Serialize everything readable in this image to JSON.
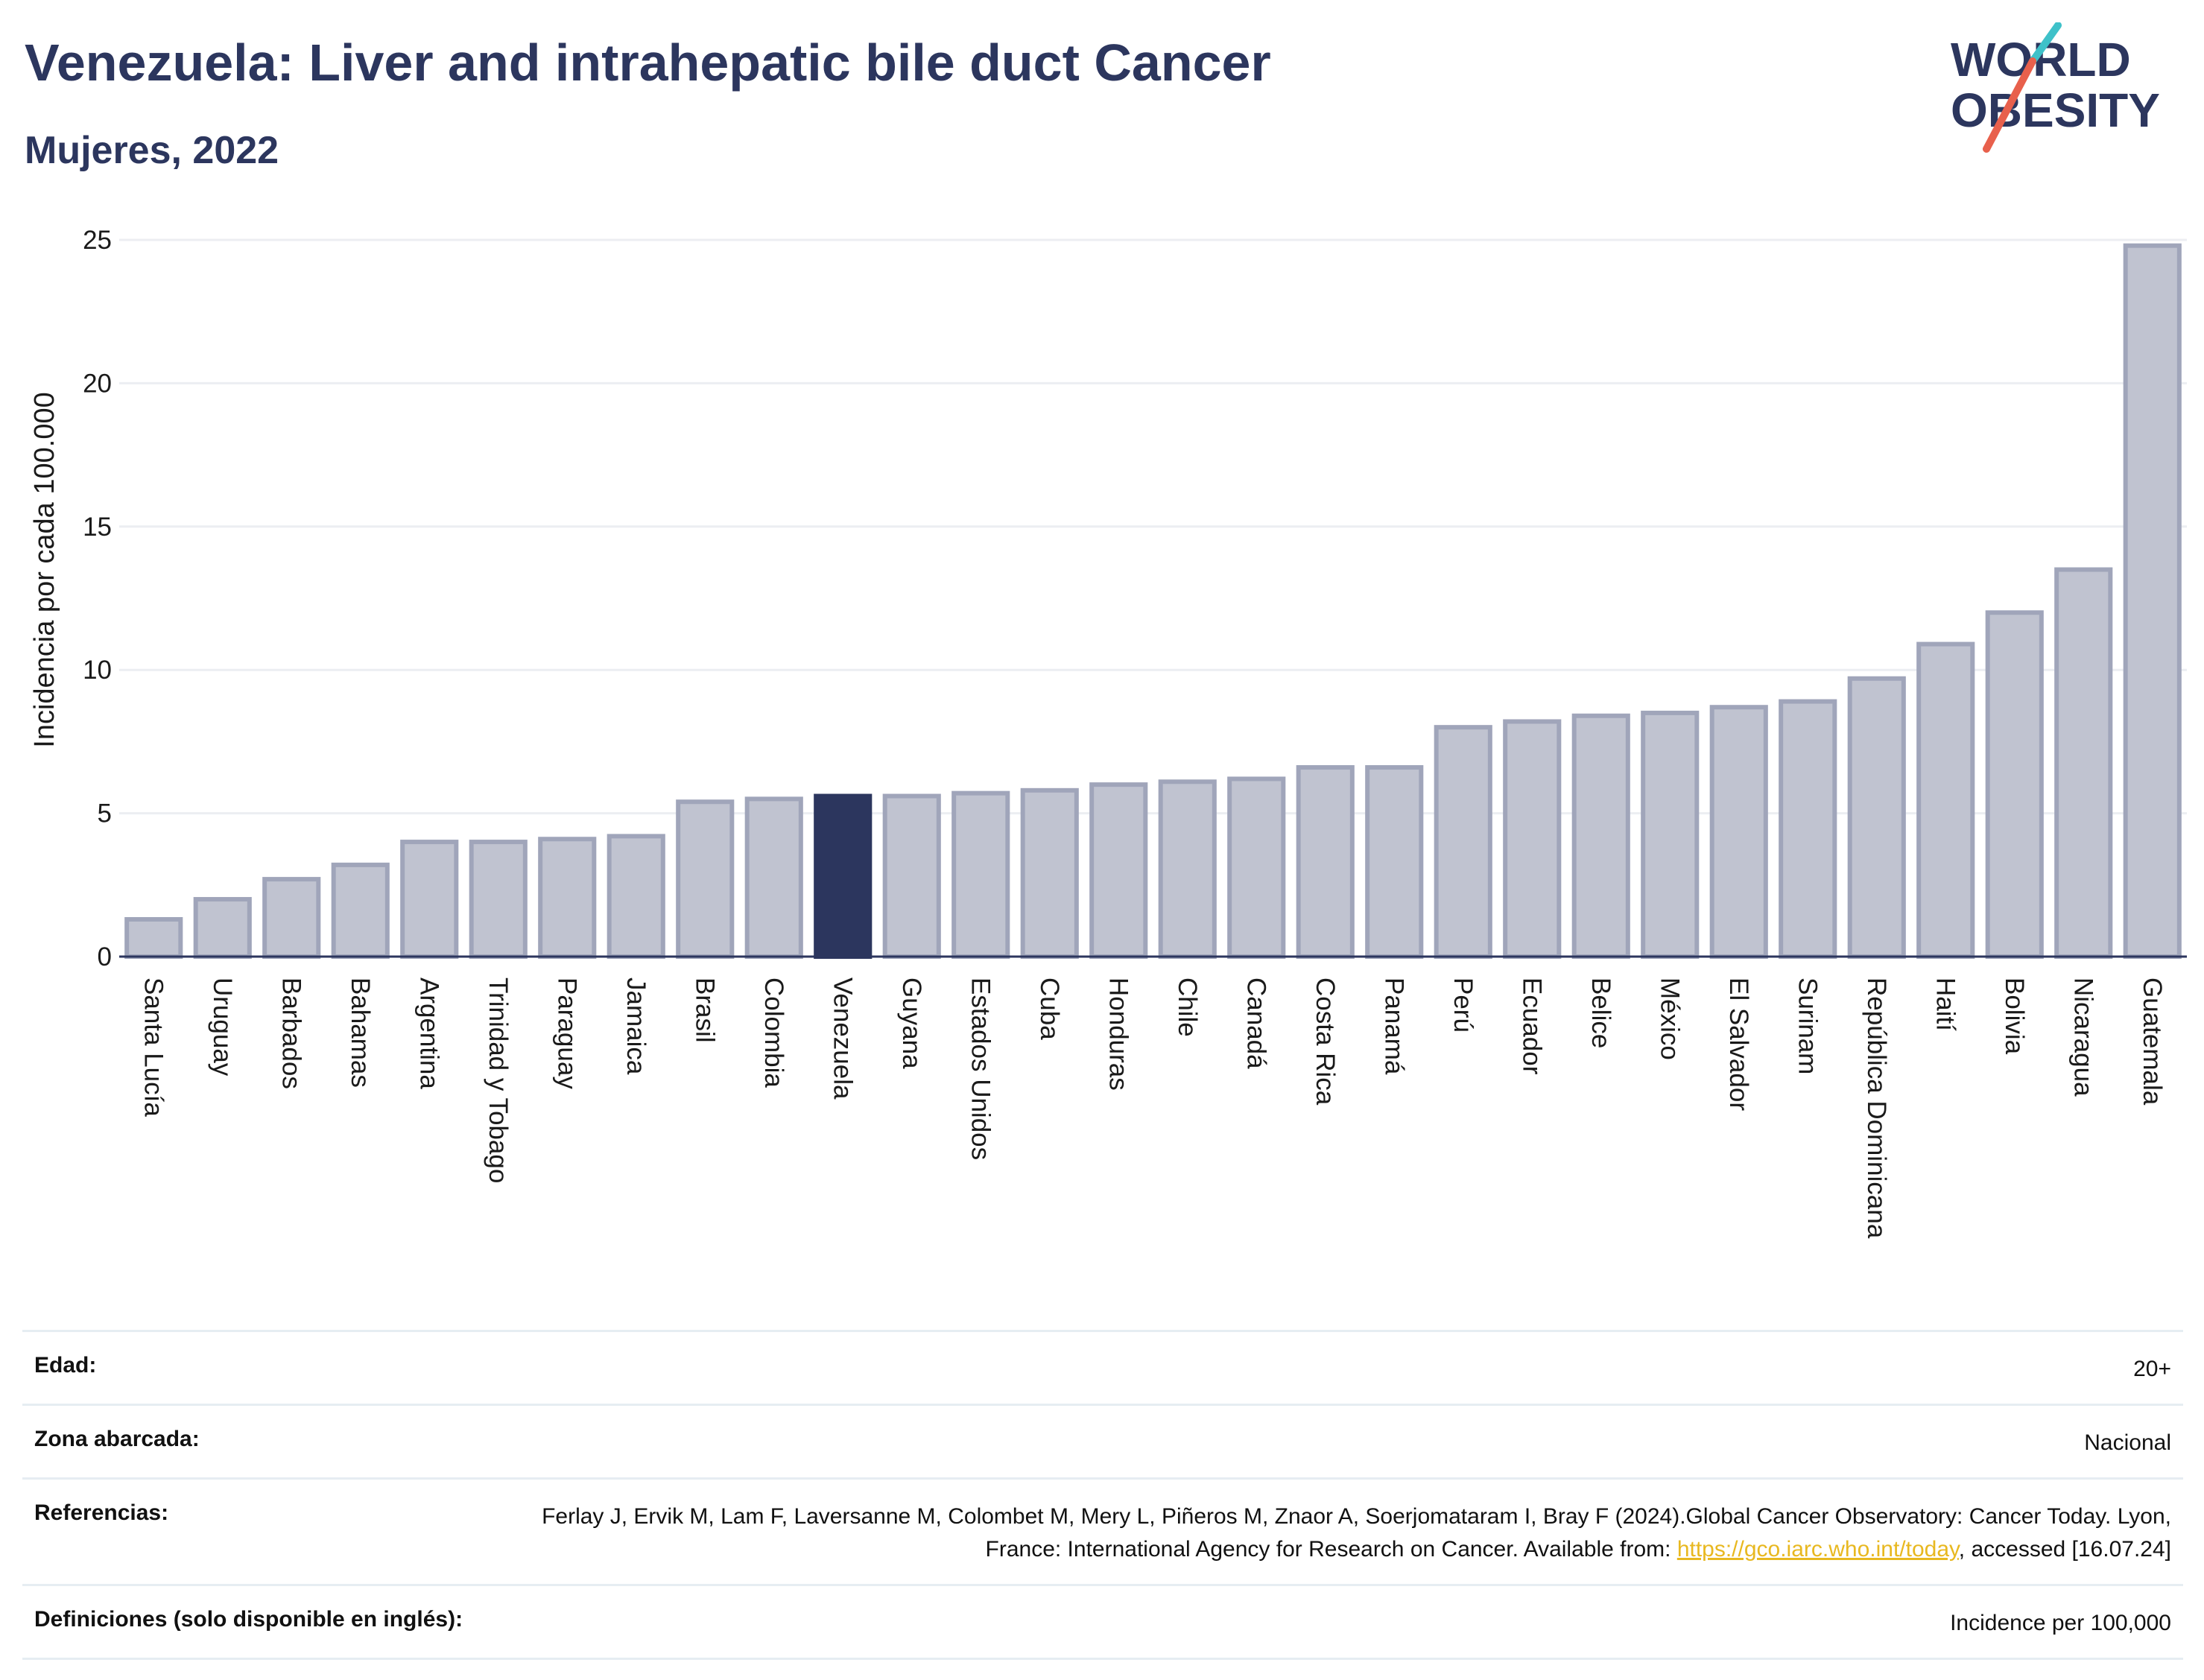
{
  "header": {
    "title": "Venezuela: Liver and intrahepatic bile duct Cancer",
    "subtitle": "Mujeres, 2022"
  },
  "logo": {
    "line1": "WORLD",
    "line2": "OBESITY"
  },
  "colors": {
    "highlight": "#2c365e",
    "bar_fill": "#c0c3d0",
    "bar_stroke": "#a0a5ba",
    "grid": "#eceef2",
    "link": "#e8b820",
    "logo_teal": "#3ec1c9",
    "logo_red": "#e8604c"
  },
  "chart_data": {
    "type": "bar",
    "ylabel": "Incidencia por cada 100.000",
    "ylim": [
      0,
      25
    ],
    "yticks": [
      0,
      5,
      10,
      15,
      20,
      25
    ],
    "grid": true,
    "highlight": "Venezuela",
    "categories": [
      "Santa Lucía",
      "Uruguay",
      "Barbados",
      "Bahamas",
      "Argentina",
      "Trinidad y Tobago",
      "Paraguay",
      "Jamaica",
      "Brasil",
      "Colombia",
      "Venezuela",
      "Guyana",
      "Estados Unidos",
      "Cuba",
      "Honduras",
      "Chile",
      "Canadá",
      "Costa Rica",
      "Panamá",
      "Perú",
      "Ecuador",
      "Belice",
      "México",
      "El Salvador",
      "Surinam",
      "República Dominicana",
      "Haití",
      "Bolivia",
      "Nicaragua",
      "Guatemala"
    ],
    "values": [
      1.3,
      2.0,
      2.7,
      3.2,
      4.0,
      4.0,
      4.1,
      4.2,
      5.4,
      5.5,
      5.6,
      5.6,
      5.7,
      5.8,
      6.0,
      6.1,
      6.2,
      6.6,
      6.6,
      8.0,
      8.2,
      8.4,
      8.5,
      8.7,
      8.9,
      9.7,
      10.9,
      12.0,
      13.5,
      24.8
    ]
  },
  "info": {
    "rows": [
      {
        "label": "Edad:",
        "value": "20+"
      },
      {
        "label": "Zona abarcada:",
        "value": "Nacional"
      },
      {
        "label": "Referencias:",
        "value_pre": "Ferlay J, Ervik M, Lam F, Laversanne M, Colombet M, Mery L, Piñeros M, Znaor A, Soerjomataram I, Bray F (2024).Global Cancer Observatory: Cancer Today. Lyon, France: International Agency for Research on Cancer. Available from: ",
        "link": "https://gco.iarc.who.int/today",
        "value_post": ", accessed [16.07.24]"
      },
      {
        "label": "Definiciones (solo disponible en inglés):",
        "value": "Incidence per 100,000"
      }
    ]
  }
}
